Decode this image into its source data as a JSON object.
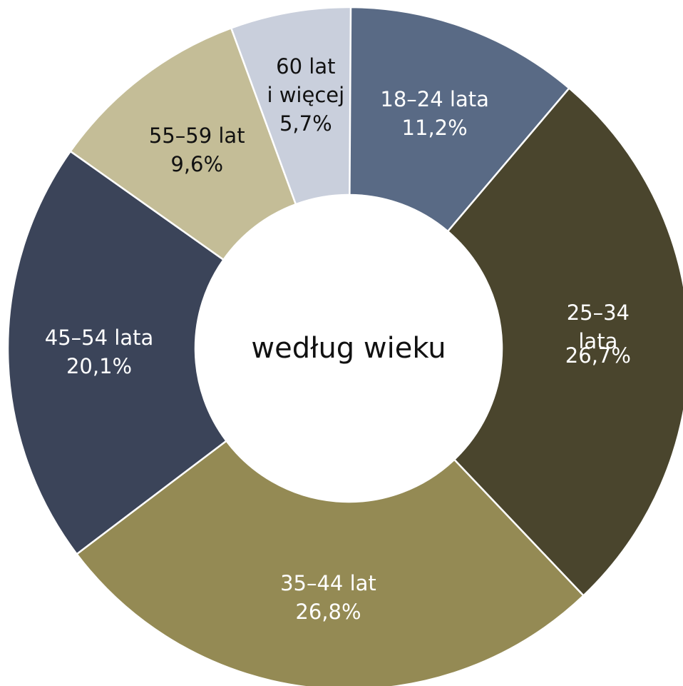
{
  "chart_data": {
    "type": "pie",
    "title": "według wieku",
    "categories": [
      "18–24 lata",
      "25–34 lata",
      "35–44 lat",
      "45–54 lata",
      "55–59 lat",
      "60 lat\ni więcej"
    ],
    "values": [
      11.2,
      26.7,
      26.8,
      20.1,
      9.6,
      5.7
    ],
    "value_labels": [
      "11,2%",
      "26,7%",
      "26,8%",
      "20,1%",
      "9,6%",
      "5,7%"
    ],
    "colors": [
      "#596a85",
      "#4a452d",
      "#948a54",
      "#3b4459",
      "#c4bd97",
      "#c9cfdc"
    ]
  }
}
